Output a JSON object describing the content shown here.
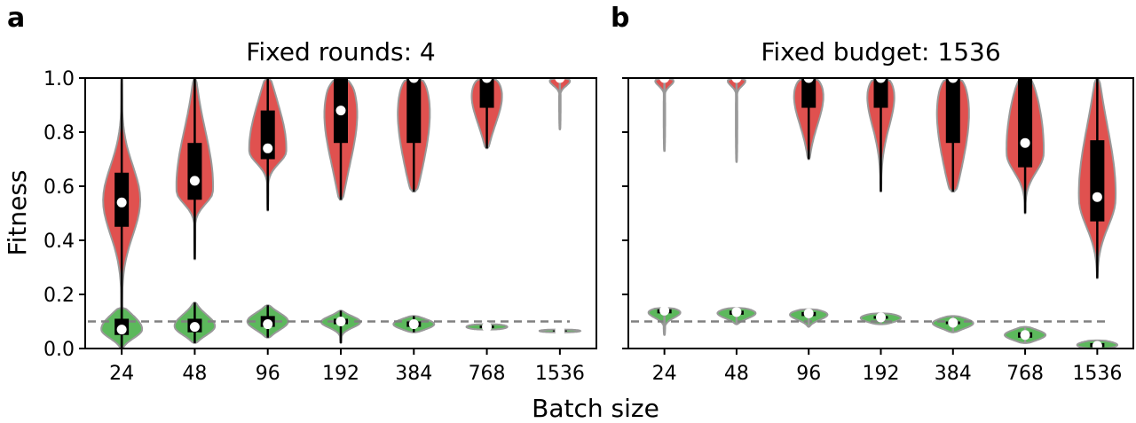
{
  "figure": {
    "ylabel": "Fitness",
    "xlabel": "Batch size",
    "colors": {
      "red_violin": "#e0514f",
      "green_violin": "#5cb85c",
      "outline": "#999999",
      "dashed": "#808080",
      "box": "#000000",
      "median": "#ffffff"
    }
  },
  "chart_data": [
    {
      "type": "violin",
      "panel_label": "a",
      "title": "Fixed rounds: 4",
      "xlabel": "Batch size",
      "ylabel": "Fitness",
      "categories": [
        "24",
        "48",
        "96",
        "192",
        "384",
        "768",
        "1536"
      ],
      "ylim": [
        0,
        1
      ],
      "yticks": [
        "0.0",
        "0.2",
        "0.4",
        "0.6",
        "0.8",
        "1.0"
      ],
      "reference_line": 0.1,
      "series": [
        {
          "color": "red",
          "stats": [
            {
              "min": 0.0,
              "q1": 0.45,
              "median": 0.54,
              "q3": 0.65,
              "max": 1.0,
              "peak": 0.55
            },
            {
              "min": 0.33,
              "q1": 0.55,
              "median": 0.62,
              "q3": 0.76,
              "max": 1.0,
              "peak": 0.58
            },
            {
              "min": 0.51,
              "q1": 0.7,
              "median": 0.74,
              "q3": 0.88,
              "max": 1.0,
              "peak": 0.73
            },
            {
              "min": 0.55,
              "q1": 0.76,
              "median": 0.88,
              "q3": 1.0,
              "max": 1.0,
              "peak": 0.95
            },
            {
              "min": 0.58,
              "q1": 0.76,
              "median": 1.0,
              "q3": 1.0,
              "max": 1.0,
              "peak": 1.0
            },
            {
              "min": 0.74,
              "q1": 0.89,
              "median": 1.0,
              "q3": 1.0,
              "max": 1.0,
              "peak": 1.0
            },
            {
              "min": 0.81,
              "q1": 1.0,
              "median": 1.0,
              "q3": 1.0,
              "max": 1.0,
              "peak": 1.0
            }
          ]
        },
        {
          "color": "green",
          "stats": [
            {
              "min": 0.0,
              "q1": 0.05,
              "median": 0.07,
              "q3": 0.11,
              "max": 0.15,
              "peak": 0.07
            },
            {
              "min": 0.02,
              "q1": 0.06,
              "median": 0.08,
              "q3": 0.11,
              "max": 0.17,
              "peak": 0.08
            },
            {
              "min": 0.04,
              "q1": 0.08,
              "median": 0.09,
              "q3": 0.12,
              "max": 0.16,
              "peak": 0.1
            },
            {
              "min": 0.02,
              "q1": 0.09,
              "median": 0.1,
              "q3": 0.11,
              "max": 0.14,
              "peak": 0.1
            },
            {
              "min": 0.06,
              "q1": 0.08,
              "median": 0.09,
              "q3": 0.1,
              "max": 0.12,
              "peak": 0.09
            },
            {
              "min": 0.07,
              "q1": 0.075,
              "median": 0.08,
              "q3": 0.085,
              "max": 0.09,
              "peak": 0.08
            },
            {
              "min": 0.06,
              "q1": 0.063,
              "median": 0.065,
              "q3": 0.067,
              "max": 0.07,
              "peak": 0.065
            }
          ]
        }
      ]
    },
    {
      "type": "violin",
      "panel_label": "b",
      "title": "Fixed budget: 1536",
      "xlabel": "Batch size",
      "ylabel": "Fitness",
      "categories": [
        "24",
        "48",
        "96",
        "192",
        "384",
        "768",
        "1536"
      ],
      "ylim": [
        0,
        1
      ],
      "reference_line": 0.1,
      "series": [
        {
          "color": "red",
          "stats": [
            {
              "min": 0.73,
              "q1": 1.0,
              "median": 1.0,
              "q3": 1.0,
              "max": 1.0,
              "peak": 1.0
            },
            {
              "min": 0.69,
              "q1": 1.0,
              "median": 1.0,
              "q3": 1.0,
              "max": 1.0,
              "peak": 1.0
            },
            {
              "min": 0.7,
              "q1": 0.89,
              "median": 1.0,
              "q3": 1.0,
              "max": 1.0,
              "peak": 1.0
            },
            {
              "min": 0.58,
              "q1": 0.89,
              "median": 1.0,
              "q3": 1.0,
              "max": 1.0,
              "peak": 1.0
            },
            {
              "min": 0.58,
              "q1": 0.76,
              "median": 1.0,
              "q3": 1.0,
              "max": 1.0,
              "peak": 1.0
            },
            {
              "min": 0.5,
              "q1": 0.67,
              "median": 0.76,
              "q3": 1.0,
              "max": 1.0,
              "peak": 0.72
            },
            {
              "min": 0.26,
              "q1": 0.47,
              "median": 0.56,
              "q3": 0.77,
              "max": 1.0,
              "peak": 0.55
            }
          ]
        },
        {
          "color": "green",
          "stats": [
            {
              "min": 0.05,
              "q1": 0.13,
              "median": 0.14,
              "q3": 0.145,
              "max": 0.15,
              "peak": 0.14
            },
            {
              "min": 0.09,
              "q1": 0.125,
              "median": 0.135,
              "q3": 0.14,
              "max": 0.15,
              "peak": 0.135
            },
            {
              "min": 0.08,
              "q1": 0.12,
              "median": 0.13,
              "q3": 0.135,
              "max": 0.145,
              "peak": 0.13
            },
            {
              "min": 0.09,
              "q1": 0.11,
              "median": 0.115,
              "q3": 0.12,
              "max": 0.13,
              "peak": 0.115
            },
            {
              "min": 0.06,
              "q1": 0.09,
              "median": 0.095,
              "q3": 0.1,
              "max": 0.12,
              "peak": 0.095
            },
            {
              "min": 0.02,
              "q1": 0.04,
              "median": 0.05,
              "q3": 0.06,
              "max": 0.08,
              "peak": 0.05
            },
            {
              "min": 0.0,
              "q1": 0.005,
              "median": 0.01,
              "q3": 0.02,
              "max": 0.03,
              "peak": 0.01
            }
          ]
        }
      ]
    }
  ]
}
